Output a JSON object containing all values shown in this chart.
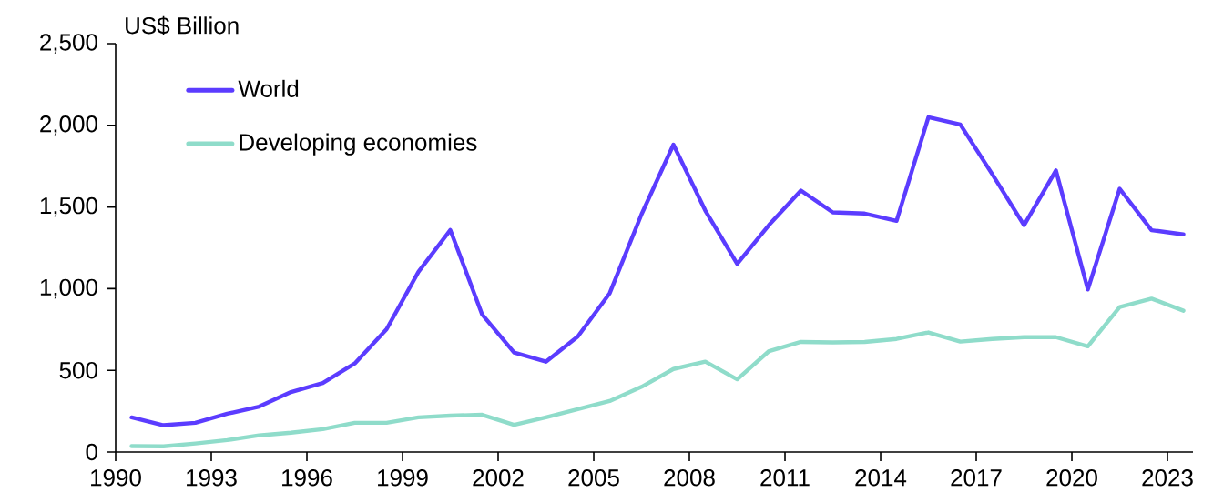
{
  "chart_data": {
    "type": "line",
    "ylabel": "US$ Billion",
    "x": [
      1990.5,
      1991.5,
      1992.5,
      1993.5,
      1994.5,
      1995.5,
      1996.5,
      1997.5,
      1998.5,
      1999.5,
      2000.5,
      2001.5,
      2002.5,
      2003.5,
      2004.5,
      2005.5,
      2006.5,
      2007.5,
      2008.5,
      2009.5,
      2010.5,
      2011.5,
      2012.5,
      2013.5,
      2014.5,
      2015.5,
      2016.5,
      2017.5,
      2018.5,
      2019.5,
      2020.5,
      2021.5,
      2022.5,
      2023.5
    ],
    "series": [
      {
        "name": "World",
        "color": "#5b3cff",
        "values": [
          212,
          164,
          179,
          234,
          278,
          367,
          423,
          542,
          752,
          1103,
          1359,
          841,
          609,
          553,
          707,
          972,
          1456,
          1882,
          1478,
          1152,
          1390,
          1601,
          1467,
          1460,
          1415,
          2050,
          2005,
          1702,
          1388,
          1724,
          995,
          1612,
          1358,
          1332
        ]
      },
      {
        "name": "Developing economies",
        "color": "#8fdcca",
        "values": [
          36,
          35,
          52,
          73,
          102,
          118,
          140,
          179,
          179,
          212,
          223,
          228,
          166,
          212,
          263,
          312,
          399,
          508,
          553,
          445,
          618,
          674,
          671,
          674,
          692,
          732,
          676,
          692,
          703,
          703,
          647,
          887,
          939,
          865
        ]
      }
    ],
    "xlim": [
      1990,
      2023.8
    ],
    "ylim": [
      0,
      2500
    ],
    "xticks": [
      1990,
      1993,
      1996,
      1999,
      2002,
      2005,
      2008,
      2011,
      2014,
      2017,
      2020,
      2023
    ],
    "yticks": [
      0,
      500,
      {
        "value": 1000,
        "label": "1,000"
      },
      {
        "value": 1500,
        "label": "1,500"
      },
      {
        "value": 2000,
        "label": "2,000"
      },
      {
        "value": 2500,
        "label": "2,500"
      }
    ],
    "grid": false,
    "legend": "top left",
    "marker": "none",
    "line_style": "solid"
  }
}
